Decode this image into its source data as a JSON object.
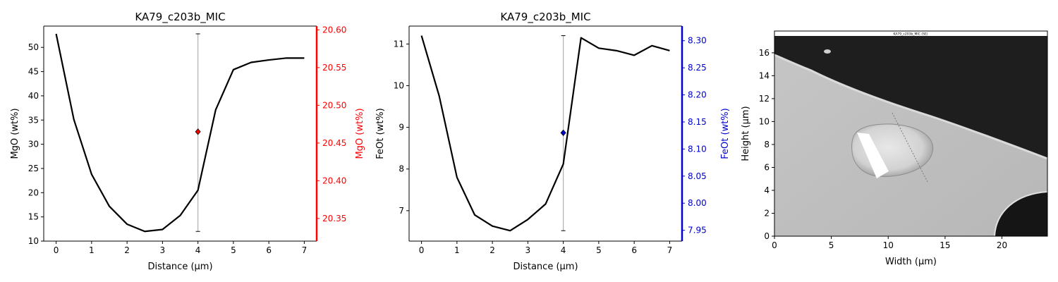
{
  "chart_data": [
    {
      "type": "line",
      "title": "KA79_c203b_MIC",
      "xlabel": "Distance (µm)",
      "ylabel": "MgO (wt%)",
      "xlim": [
        -0.35,
        7.35
      ],
      "ylim": [
        10,
        54.4
      ],
      "xticks": [
        0,
        1,
        2,
        3,
        4,
        5,
        6,
        7
      ],
      "yticks": [
        10,
        15,
        20,
        25,
        30,
        35,
        40,
        45,
        50
      ],
      "x": [
        0,
        0.5,
        1,
        1.5,
        2,
        2.5,
        3,
        3.5,
        4,
        4.5,
        5,
        5.5,
        6,
        6.5,
        7
      ],
      "series": [
        {
          "values": [
            52.8,
            35.1,
            23.8,
            17.2,
            13.5,
            12.0,
            12.4,
            15.3,
            20.5,
            37.1,
            45.4,
            46.9,
            47.4,
            47.8,
            47.8
          ],
          "color": "#000000"
        }
      ],
      "marker_line": {
        "x": 4,
        "y_min": 12.0,
        "y_max": 52.8,
        "color": "#b0b0b0"
      },
      "secondary_axis": {
        "label": "MgO (wt%)",
        "color": "#ff0000",
        "ylim": [
          20.32,
          20.605
        ],
        "yticks": [
          20.35,
          20.4,
          20.45,
          20.5,
          20.55,
          20.6
        ],
        "point": {
          "x": 4,
          "value": 20.465
        }
      },
      "grid": false
    },
    {
      "type": "line",
      "title": "KA79_c203b_MIC",
      "xlabel": "Distance (µm)",
      "ylabel": "FeOt (wt%)",
      "xlim": [
        -0.35,
        7.35
      ],
      "ylim": [
        6.27,
        11.43
      ],
      "xticks": [
        0,
        1,
        2,
        3,
        4,
        5,
        6,
        7
      ],
      "yticks": [
        7,
        8,
        9,
        10,
        11
      ],
      "x": [
        0,
        0.5,
        1,
        1.5,
        2,
        2.5,
        3,
        3.5,
        4,
        4.5,
        5,
        5.5,
        6,
        6.5,
        7
      ],
      "series": [
        {
          "values": [
            11.2,
            9.75,
            7.8,
            6.9,
            6.63,
            6.52,
            6.79,
            7.16,
            8.12,
            11.15,
            10.9,
            10.84,
            10.73,
            10.96,
            10.84
          ],
          "color": "#000000"
        }
      ],
      "marker_line": {
        "x": 4,
        "y_min": 6.52,
        "y_max": 11.2,
        "color": "#b0b0b0"
      },
      "secondary_axis": {
        "label": "FeOt (wt%)",
        "color": "#0000cc",
        "ylim": [
          7.93,
          8.327
        ],
        "yticks": [
          7.95,
          8.0,
          8.05,
          8.1,
          8.15,
          8.2,
          8.25,
          8.3
        ],
        "point": {
          "x": 4,
          "value": 8.13
        }
      },
      "grid": false
    },
    {
      "type": "image",
      "xlabel": "Width (µm)",
      "ylabel": "Height (µm)",
      "xlim": [
        0,
        24
      ],
      "ylim": [
        0,
        17.9
      ],
      "xticks": [
        0,
        5,
        10,
        15,
        20
      ],
      "yticks": [
        0,
        2,
        4,
        6,
        8,
        10,
        12,
        14,
        16
      ],
      "image_caption": "KA79_c203b_MIC (SE)"
    }
  ]
}
